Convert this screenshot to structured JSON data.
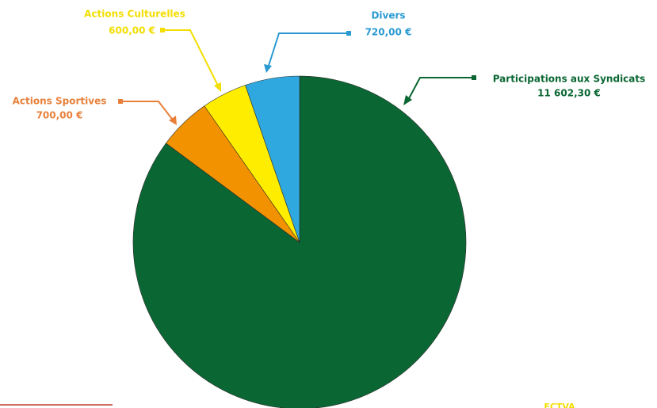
{
  "chart_data": {
    "type": "pie",
    "categories": [
      "Participations aux Syndicats",
      "Actions Sportives",
      "Actions Culturelles",
      "Divers"
    ],
    "values": [
      11602.3,
      700,
      600,
      720
    ],
    "value_labels": [
      "11 602,30 €",
      "700,00 €",
      "600,00 €",
      "720,00 €"
    ],
    "colors": [
      "#0a6633",
      "#f39200",
      "#ffed00",
      "#2fa8e0"
    ],
    "label_colors": [
      "#0a6633",
      "#e8803a",
      "#f2de00",
      "#2a9ad0"
    ],
    "footer_note": "FCTVA"
  }
}
